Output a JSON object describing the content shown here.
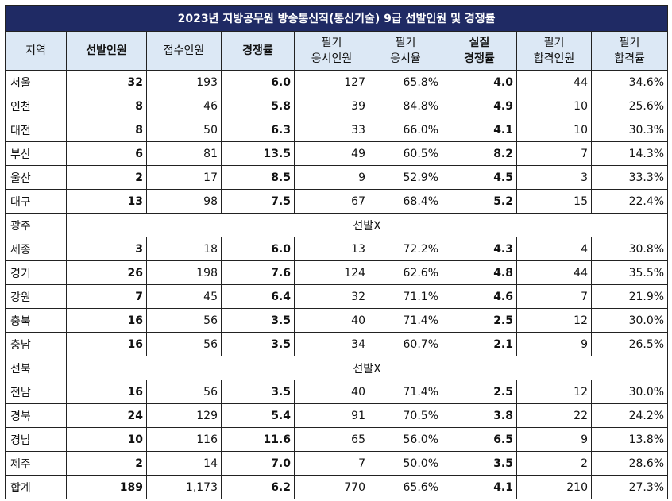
{
  "title": "2023년 지방공무원 방송통신직(통신기술) 9급 선발인원 및 경쟁률",
  "headers": [
    {
      "line1": "지역",
      "line2": ""
    },
    {
      "line1": "선발인원",
      "line2": ""
    },
    {
      "line1": "접수인원",
      "line2": ""
    },
    {
      "line1": "경쟁률",
      "line2": ""
    },
    {
      "line1": "필기",
      "line2": "응시인원"
    },
    {
      "line1": "필기",
      "line2": "응시율"
    },
    {
      "line1": "실질",
      "line2": "경쟁률"
    },
    {
      "line1": "필기",
      "line2": "합격인원"
    },
    {
      "line1": "필기",
      "line2": "합격률"
    }
  ],
  "rows": [
    {
      "region": "서울",
      "cells": [
        "32",
        "193",
        "6.0",
        "127",
        "65.8%",
        "4.0",
        "44",
        "34.6%"
      ]
    },
    {
      "region": "인천",
      "cells": [
        "8",
        "46",
        "5.8",
        "39",
        "84.8%",
        "4.9",
        "10",
        "25.6%"
      ]
    },
    {
      "region": "대전",
      "cells": [
        "8",
        "50",
        "6.3",
        "33",
        "66.0%",
        "4.1",
        "10",
        "30.3%"
      ]
    },
    {
      "region": "부산",
      "cells": [
        "6",
        "81",
        "13.5",
        "49",
        "60.5%",
        "8.2",
        "7",
        "14.3%"
      ]
    },
    {
      "region": "울산",
      "cells": [
        "2",
        "17",
        "8.5",
        "9",
        "52.9%",
        "4.5",
        "3",
        "33.3%"
      ]
    },
    {
      "region": "대구",
      "cells": [
        "13",
        "98",
        "7.5",
        "67",
        "68.4%",
        "5.2",
        "15",
        "22.4%"
      ]
    },
    {
      "region": "광주",
      "merged": "선발X"
    },
    {
      "region": "세종",
      "cells": [
        "3",
        "18",
        "6.0",
        "13",
        "72.2%",
        "4.3",
        "4",
        "30.8%"
      ]
    },
    {
      "region": "경기",
      "cells": [
        "26",
        "198",
        "7.6",
        "124",
        "62.6%",
        "4.8",
        "44",
        "35.5%"
      ]
    },
    {
      "region": "강원",
      "cells": [
        "7",
        "45",
        "6.4",
        "32",
        "71.1%",
        "4.6",
        "7",
        "21.9%"
      ]
    },
    {
      "region": "충북",
      "cells": [
        "16",
        "56",
        "3.5",
        "40",
        "71.4%",
        "2.5",
        "12",
        "30.0%"
      ]
    },
    {
      "region": "충남",
      "cells": [
        "16",
        "56",
        "3.5",
        "34",
        "60.7%",
        "2.1",
        "9",
        "26.5%"
      ]
    },
    {
      "region": "전북",
      "merged": "선발X"
    },
    {
      "region": "전남",
      "cells": [
        "16",
        "56",
        "3.5",
        "40",
        "71.4%",
        "2.5",
        "12",
        "30.0%"
      ]
    },
    {
      "region": "경북",
      "cells": [
        "24",
        "129",
        "5.4",
        "91",
        "70.5%",
        "3.8",
        "22",
        "24.2%"
      ]
    },
    {
      "region": "경남",
      "cells": [
        "10",
        "116",
        "11.6",
        "65",
        "56.0%",
        "6.5",
        "9",
        "13.8%"
      ]
    },
    {
      "region": "제주",
      "cells": [
        "2",
        "14",
        "7.0",
        "7",
        "50.0%",
        "3.5",
        "2",
        "28.6%"
      ]
    },
    {
      "region": "합계",
      "cells": [
        "189",
        "1,173",
        "6.2",
        "770",
        "65.6%",
        "4.1",
        "210",
        "27.3%"
      ]
    }
  ]
}
